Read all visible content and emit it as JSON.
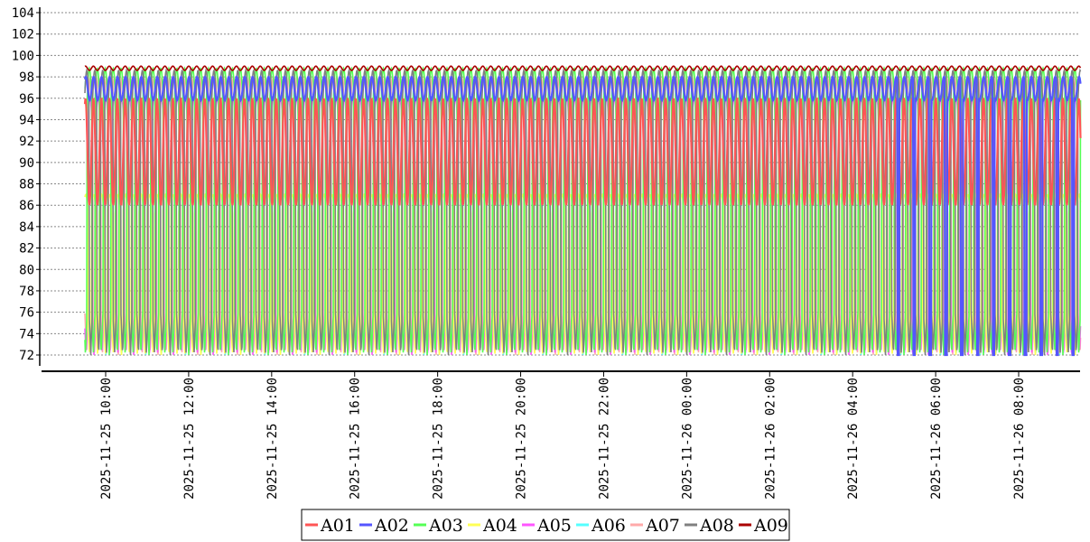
{
  "chart_data": {
    "type": "line",
    "title": "",
    "xlabel": "",
    "ylabel": "",
    "ylim": [
      72,
      104
    ],
    "yticks": [
      "72",
      "74",
      "76",
      "78",
      "80",
      "82",
      "84",
      "86",
      "88",
      "90",
      "92",
      "94",
      "96",
      "98",
      "100",
      "102",
      "104"
    ],
    "xticks": [
      "2025-11-25 10:00",
      "2025-11-25 12:00",
      "2025-11-25 14:00",
      "2025-11-25 16:00",
      "2025-11-25 18:00",
      "2025-11-25 20:00",
      "2025-11-25 22:00",
      "2025-11-26 00:00",
      "2025-11-26 02:00",
      "2025-11-26 04:00",
      "2025-11-26 06:00",
      "2025-11-26 08:00"
    ],
    "x_range": [
      "2025-11-25 09:30",
      "2025-11-26 09:30"
    ],
    "grid": "horizontal dashed",
    "legend_position": "bottom-center",
    "series": [
      {
        "name": "A01",
        "color": "#ff5555",
        "low": 86,
        "high": 96
      },
      {
        "name": "A02",
        "color": "#5555ff",
        "low": 96,
        "high": 98.5
      },
      {
        "name": "A03",
        "color": "#55ff55",
        "low": 72,
        "high": 98.8
      },
      {
        "name": "A04",
        "color": "#ffff55",
        "low": 72,
        "high": 87
      },
      {
        "name": "A05",
        "color": "#ff55ff",
        "low": 72,
        "high": 96
      },
      {
        "name": "A06",
        "color": "#55ffff",
        "low": 72,
        "high": 98
      },
      {
        "name": "A07",
        "color": "#ffaaaa",
        "low": 72,
        "high": 98
      },
      {
        "name": "A08",
        "color": "#808080",
        "low": 72,
        "high": 98.6
      },
      {
        "name": "A09",
        "color": "#aa0000",
        "low": 98,
        "high": 99
      }
    ]
  }
}
